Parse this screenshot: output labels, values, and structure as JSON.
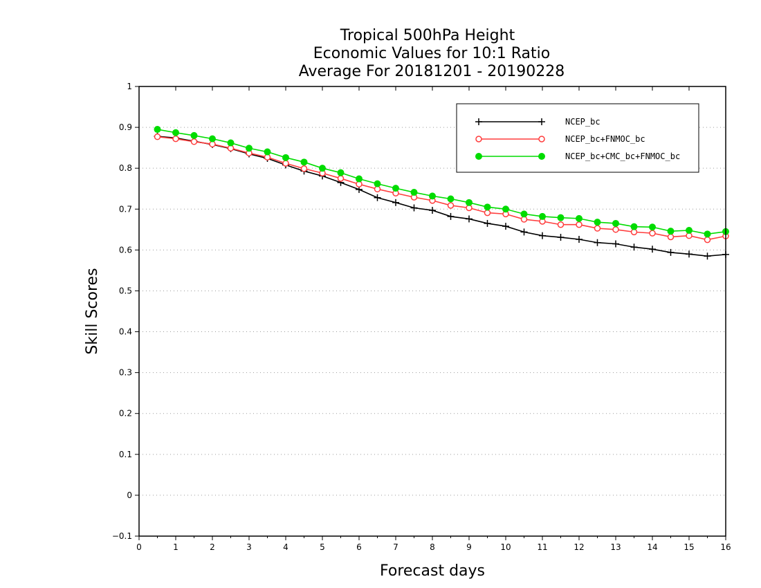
{
  "chart_data": {
    "type": "line",
    "title_lines": [
      "Tropical 500hPa Height",
      "Economic Values for 10:1 Ratio",
      "Average For 20181201 - 20190228"
    ],
    "xlabel": "Forecast days",
    "ylabel": "Skill Scores",
    "xlim": [
      0,
      16
    ],
    "ylim": [
      -0.1,
      1
    ],
    "xticks": [
      "0",
      "1",
      "2",
      "3",
      "4",
      "5",
      "6",
      "7",
      "8",
      "9",
      "10",
      "11",
      "12",
      "13",
      "14",
      "15",
      "16"
    ],
    "yticks": [
      "−0.1",
      "0",
      "0.1",
      "0.2",
      "0.3",
      "0.4",
      "0.5",
      "0.6",
      "0.7",
      "0.8",
      "0.9",
      "1"
    ],
    "ytick_values": [
      -0.1,
      0,
      0.1,
      0.2,
      0.3,
      0.4,
      0.5,
      0.6,
      0.7,
      0.8,
      0.9,
      1
    ],
    "grid": "horizontal dotted",
    "legend_position": "top-right",
    "x": [
      0.5,
      1,
      1.5,
      2,
      2.5,
      3,
      3.5,
      4,
      4.5,
      5,
      5.5,
      6,
      6.5,
      7,
      7.5,
      8,
      8.5,
      9,
      9.5,
      10,
      10.5,
      11,
      11.5,
      12,
      12.5,
      13,
      13.5,
      14,
      14.5,
      15,
      15.5,
      16
    ],
    "series": [
      {
        "name": "NCEP_bc",
        "color": "#000000",
        "marker": "plus",
        "values": [
          0.878,
          0.874,
          0.866,
          0.858,
          0.848,
          0.835,
          0.824,
          0.808,
          0.793,
          0.781,
          0.765,
          0.748,
          0.728,
          0.716,
          0.703,
          0.697,
          0.682,
          0.676,
          0.665,
          0.658,
          0.644,
          0.635,
          0.631,
          0.626,
          0.618,
          0.615,
          0.607,
          0.602,
          0.594,
          0.59,
          0.585,
          0.589
        ]
      },
      {
        "name": "NCEP_bc+FNMOC_bc",
        "color": "#ff3c3c",
        "marker": "open-circle",
        "values": [
          0.877,
          0.872,
          0.865,
          0.859,
          0.849,
          0.837,
          0.827,
          0.812,
          0.799,
          0.788,
          0.775,
          0.761,
          0.749,
          0.739,
          0.729,
          0.721,
          0.709,
          0.703,
          0.691,
          0.688,
          0.675,
          0.67,
          0.662,
          0.662,
          0.653,
          0.65,
          0.644,
          0.641,
          0.632,
          0.635,
          0.625,
          0.634
        ]
      },
      {
        "name": "NCEP_bc+CMC_bc+FNMOC_bc",
        "color": "#00dc00",
        "marker": "filled-circle",
        "values": [
          0.895,
          0.887,
          0.88,
          0.872,
          0.862,
          0.849,
          0.84,
          0.826,
          0.815,
          0.8,
          0.789,
          0.774,
          0.762,
          0.751,
          0.741,
          0.732,
          0.725,
          0.716,
          0.705,
          0.7,
          0.688,
          0.682,
          0.679,
          0.677,
          0.668,
          0.665,
          0.657,
          0.656,
          0.646,
          0.648,
          0.639,
          0.645
        ]
      }
    ]
  }
}
